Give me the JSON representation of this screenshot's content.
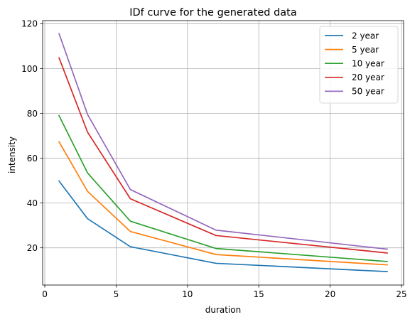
{
  "chart_data": {
    "type": "line",
    "title": "IDf curve for the generated data",
    "xlabel": "duration",
    "ylabel": "intensity",
    "xlim": [
      -0.15,
      25.15
    ],
    "ylim": [
      3.4,
      121.4
    ],
    "xticks": [
      0,
      5,
      10,
      15,
      20,
      25
    ],
    "yticks": [
      20,
      40,
      60,
      80,
      100,
      120
    ],
    "grid": true,
    "legend_position": "top-right",
    "x": [
      1,
      3,
      6,
      12,
      24
    ],
    "series": [
      {
        "name": "2 year",
        "color": "#1f77b4",
        "values": [
          49.8,
          33.0,
          20.5,
          13.1,
          9.4
        ]
      },
      {
        "name": "5 year",
        "color": "#ff7f0e",
        "values": [
          67.3,
          45.2,
          27.3,
          17.0,
          12.4
        ]
      },
      {
        "name": "10 year",
        "color": "#2ca02c",
        "values": [
          79.0,
          53.4,
          31.9,
          19.7,
          13.9
        ]
      },
      {
        "name": "20 year",
        "color": "#d62728",
        "values": [
          104.8,
          71.6,
          41.9,
          25.5,
          17.7
        ]
      },
      {
        "name": "50 year",
        "color": "#9467bd",
        "values": [
          115.6,
          79.5,
          46.0,
          27.9,
          19.4
        ]
      }
    ]
  }
}
